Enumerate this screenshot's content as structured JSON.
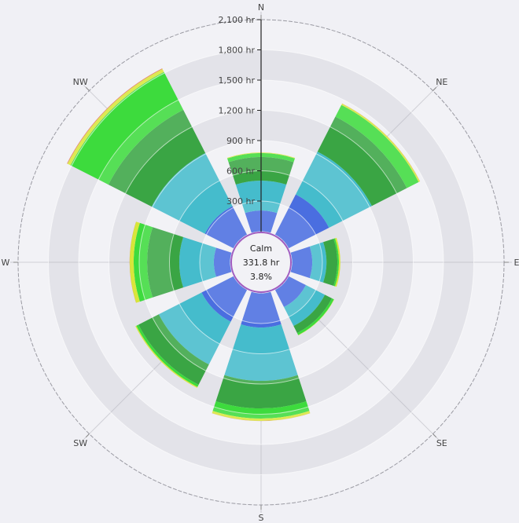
{
  "chart_data": {
    "type": "wind-rose",
    "directions": [
      "N",
      "NE",
      "E",
      "SE",
      "S",
      "SW",
      "W",
      "NW"
    ],
    "radial_axis": {
      "unit": "hr",
      "ticks": [
        "300 hr",
        "600 hr",
        "900 hr",
        "1,200 hr",
        "1,500 hr",
        "1,800 hr",
        "2,100 hr"
      ],
      "tick_values": [
        300,
        600,
        900,
        1200,
        1500,
        1800,
        2100
      ],
      "range": [
        0,
        2100
      ]
    },
    "series": [
      {
        "color": "#4a6ee0",
        "values": [
          206,
          448,
          199,
          191,
          339,
          354,
          160,
          317
        ]
      },
      {
        "color": "#45bccc",
        "values": [
          297,
          476,
          141,
          211,
          530,
          476,
          343,
          592
        ]
      },
      {
        "color": "#3aa544",
        "values": [
          234,
          390,
          108,
          78,
          273,
          226,
          319,
          481
        ]
      },
      {
        "color": "#3ddb3d",
        "values": [
          39,
          131,
          15,
          23,
          101,
          24,
          133,
          422
        ]
      },
      {
        "color": "#d8e63a",
        "values": [
          6,
          15,
          15,
          3,
          23,
          10,
          39,
          34
        ]
      },
      {
        "color": "#e0604a",
        "values": [
          0,
          1,
          0,
          0,
          1,
          0,
          1,
          5
        ]
      }
    ],
    "calm": {
      "label": "Calm",
      "hours": "331.8 hr",
      "percent": "3.8%"
    },
    "grid": true,
    "colors": {
      "background": "#f0f0f5",
      "band": "#e3e3e9",
      "calm_ring": "#a05cc0"
    }
  }
}
